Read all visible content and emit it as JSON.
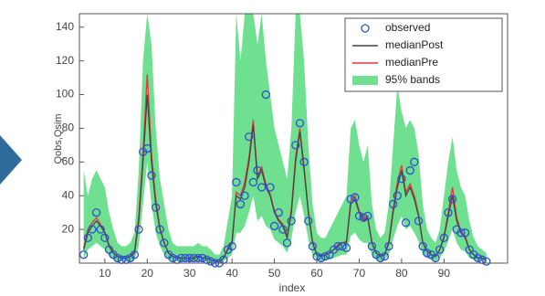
{
  "chart_data": {
    "type": "line",
    "xlabel": "index",
    "ylabel": "Qobs,Qsim",
    "xlim": [
      4,
      105
    ],
    "ylim": [
      0,
      148
    ],
    "xticks": [
      10,
      20,
      30,
      40,
      50,
      60,
      70,
      80,
      90
    ],
    "yticks": [
      20,
      40,
      60,
      80,
      100,
      120,
      140
    ],
    "legend": "upper right",
    "x": [
      5,
      6,
      7,
      8,
      9,
      10,
      11,
      12,
      13,
      14,
      15,
      16,
      17,
      18,
      19,
      20,
      21,
      22,
      23,
      24,
      25,
      26,
      27,
      28,
      29,
      30,
      31,
      32,
      33,
      34,
      35,
      36,
      37,
      38,
      39,
      40,
      41,
      42,
      43,
      44,
      45,
      46,
      47,
      48,
      49,
      50,
      51,
      52,
      53,
      54,
      55,
      56,
      57,
      58,
      59,
      60,
      61,
      62,
      63,
      64,
      65,
      66,
      67,
      68,
      69,
      70,
      71,
      72,
      73,
      74,
      75,
      76,
      77,
      78,
      79,
      80,
      81,
      82,
      83,
      84,
      85,
      86,
      87,
      88,
      89,
      90,
      91,
      92,
      93,
      94,
      95,
      96,
      97,
      98,
      99,
      100
    ],
    "band": {
      "name": "95% bands",
      "color": "#6ee08f",
      "upper": [
        55,
        40,
        50,
        55,
        50,
        45,
        30,
        20,
        12,
        10,
        10,
        12,
        18,
        55,
        120,
        148,
        130,
        80,
        50,
        35,
        20,
        12,
        10,
        10,
        10,
        10,
        10,
        12,
        10,
        10,
        8,
        5,
        5,
        10,
        25,
        40,
        148,
        120,
        148,
        148,
        148,
        130,
        148,
        120,
        100,
        80,
        70,
        60,
        50,
        80,
        148,
        148,
        120,
        70,
        35,
        18,
        15,
        15,
        20,
        25,
        30,
        35,
        40,
        80,
        85,
        70,
        60,
        70,
        35,
        20,
        15,
        18,
        35,
        70,
        105,
        90,
        80,
        85,
        80,
        65,
        35,
        20,
        15,
        12,
        20,
        40,
        60,
        75,
        55,
        45,
        40,
        25,
        15,
        10,
        8,
        6
      ],
      "lower": [
        2,
        8,
        10,
        12,
        10,
        8,
        4,
        2,
        1,
        1,
        1,
        1,
        2,
        10,
        35,
        60,
        35,
        18,
        10,
        5,
        2,
        1,
        1,
        1,
        1,
        1,
        1,
        1,
        1,
        1,
        0,
        0,
        0,
        1,
        3,
        5,
        18,
        18,
        22,
        30,
        40,
        25,
        28,
        22,
        20,
        14,
        12,
        10,
        6,
        14,
        30,
        40,
        28,
        14,
        5,
        2,
        1,
        2,
        2,
        3,
        4,
        5,
        5,
        16,
        18,
        14,
        12,
        12,
        5,
        2,
        1,
        2,
        5,
        14,
        22,
        28,
        20,
        22,
        18,
        13,
        5,
        3,
        2,
        1,
        3,
        7,
        13,
        20,
        12,
        8,
        7,
        3,
        2,
        1,
        1,
        0
      ]
    },
    "series": [
      {
        "name": "observed",
        "color": "#2f4fd0",
        "marker": "circle",
        "values": [
          5,
          15,
          20,
          30,
          20,
          15,
          8,
          5,
          3,
          2,
          2,
          3,
          5,
          20,
          66,
          68,
          52,
          33,
          20,
          12,
          5,
          3,
          2,
          3,
          3,
          3,
          3,
          3,
          3,
          2,
          1,
          0,
          0,
          2,
          8,
          10,
          48,
          35,
          40,
          75,
          48,
          55,
          45,
          100,
          45,
          22,
          30,
          20,
          12,
          25,
          70,
          83,
          60,
          25,
          10,
          4,
          3,
          4,
          5,
          8,
          10,
          10,
          9,
          38,
          39,
          28,
          27,
          28,
          10,
          5,
          3,
          4,
          10,
          35,
          40,
          50,
          24,
          55,
          60,
          25,
          10,
          6,
          5,
          3,
          8,
          15,
          30,
          38,
          20,
          18,
          18,
          8,
          5,
          3,
          2,
          1
        ]
      },
      {
        "name": "medianPost",
        "color": "#444444",
        "values": [
          8,
          18,
          22,
          25,
          22,
          18,
          10,
          6,
          4,
          3,
          3,
          4,
          6,
          25,
          60,
          100,
          60,
          35,
          20,
          12,
          6,
          4,
          3,
          3,
          3,
          3,
          3,
          4,
          3,
          3,
          2,
          1,
          1,
          3,
          8,
          12,
          40,
          38,
          45,
          60,
          82,
          50,
          55,
          45,
          40,
          30,
          25,
          22,
          15,
          30,
          60,
          78,
          55,
          30,
          12,
          5,
          4,
          5,
          6,
          8,
          10,
          12,
          12,
          35,
          38,
          30,
          25,
          27,
          12,
          6,
          4,
          5,
          12,
          30,
          45,
          55,
          40,
          45,
          38,
          28,
          12,
          7,
          5,
          4,
          8,
          15,
          28,
          40,
          25,
          18,
          15,
          8,
          5,
          3,
          3,
          2
        ]
      },
      {
        "name": "medianPre",
        "color": "#e03a3a",
        "values": [
          9,
          20,
          24,
          27,
          23,
          18,
          11,
          6,
          4,
          3,
          3,
          4,
          7,
          28,
          65,
          112,
          65,
          38,
          21,
          12,
          6,
          4,
          3,
          3,
          3,
          3,
          3,
          4,
          3,
          3,
          2,
          1,
          1,
          3,
          9,
          13,
          42,
          40,
          48,
          63,
          85,
          52,
          57,
          47,
          41,
          31,
          26,
          23,
          16,
          32,
          63,
          80,
          57,
          31,
          13,
          5,
          4,
          5,
          6,
          8,
          11,
          12,
          13,
          37,
          40,
          31,
          26,
          28,
          12,
          6,
          4,
          5,
          13,
          32,
          48,
          58,
          42,
          47,
          40,
          29,
          12,
          7,
          5,
          4,
          8,
          16,
          30,
          45,
          27,
          19,
          16,
          8,
          5,
          3,
          3,
          2
        ]
      }
    ]
  }
}
